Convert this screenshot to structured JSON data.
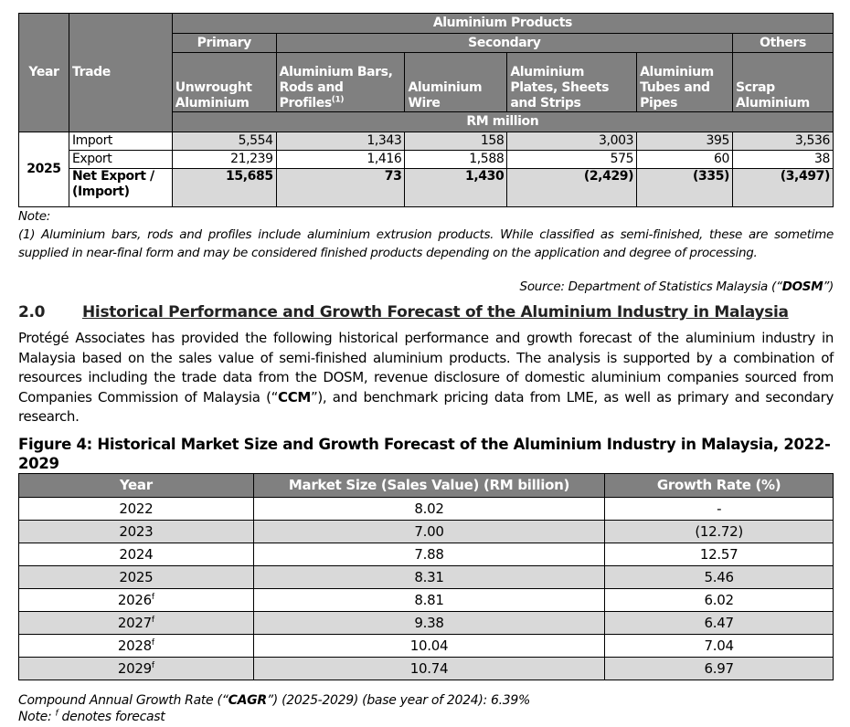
{
  "trade_table": {
    "group_header": "Aluminium Products",
    "col_year": "Year",
    "col_trade": "Trade",
    "categories": [
      "Primary",
      "Secondary",
      "Others"
    ],
    "products": [
      "Unwrought Aluminium",
      "Aluminium Bars, Rods and Profiles",
      "Aluminium Wire",
      "Aluminium Plates, Sheets and Strips",
      "Aluminium Tubes and Pipes",
      "Scrap Aluminium"
    ],
    "bars_footnote_ref": "(1)",
    "unit": "RM million",
    "year": "2025",
    "rows": [
      {
        "trade": "Import",
        "values": [
          "5,554",
          "1,343",
          "158",
          "3,003",
          "395",
          "3,536"
        ]
      },
      {
        "trade": "Export",
        "values": [
          "21,239",
          "1,416",
          "1,588",
          "575",
          "60",
          "38"
        ]
      },
      {
        "trade": "Net Export / (Import)",
        "values": [
          "15,685",
          "73",
          "1,430",
          "(2,429)",
          "(335)",
          "(3,497)"
        ]
      }
    ]
  },
  "notes": {
    "label": "Note:",
    "note1": "(1)  Aluminium bars, rods and profiles include aluminium extrusion products. While classified as semi-finished, these are sometime supplied in near-final form and may be considered finished products depending on the application and degree of processing.",
    "source_prefix": "Source: Department of Statistics Malaysia (“",
    "source_abbr": "DOSM",
    "source_suffix": "”)"
  },
  "section": {
    "number": "2.0",
    "title": "Historical Performance and Growth Forecast of the Aluminium Industry in Malaysia",
    "para_a": "Protégé Associates has provided the following historical performance and growth forecast of the aluminium industry in Malaysia based on the sales value of semi-finished aluminium products. The analysis is supported by a combination of resources including the trade data from the DOSM, revenue disclosure of domestic aluminium companies sourced from Companies Commission of Malaysia (“",
    "para_abbr": "CCM",
    "para_b": "”), and benchmark pricing data from LME, as well as primary and secondary research."
  },
  "figure": {
    "title": "Figure 4: Historical Market Size and Growth Forecast of the Aluminium Industry in Malaysia, 2022-2029",
    "headers": [
      "Year",
      "Market Size (Sales Value) (RM billion)",
      "Growth Rate (%)"
    ],
    "rows": [
      {
        "year": "2022",
        "f": "",
        "size": "8.02",
        "growth": "-"
      },
      {
        "year": "2023",
        "f": "",
        "size": "7.00",
        "growth": "(12.72)"
      },
      {
        "year": "2024",
        "f": "",
        "size": "7.88",
        "growth": "12.57"
      },
      {
        "year": "2025",
        "f": "",
        "size": "8.31",
        "growth": "5.46"
      },
      {
        "year": "2026",
        "f": "f",
        "size": "8.81",
        "growth": "6.02"
      },
      {
        "year": "2027",
        "f": "f",
        "size": "9.38",
        "growth": "6.47"
      },
      {
        "year": "2028",
        "f": "f",
        "size": "10.04",
        "growth": "7.04"
      },
      {
        "year": "2029",
        "f": "f",
        "size": "10.74",
        "growth": "6.97"
      }
    ],
    "cagr_a": "Compound Annual Growth Rate (“",
    "cagr_abbr": "CAGR",
    "cagr_b": "”) (2025-2029) (base year of 2024): 6.39%",
    "note_a": "Note: ",
    "note_sup": "f",
    "note_b": " denotes forecast"
  }
}
